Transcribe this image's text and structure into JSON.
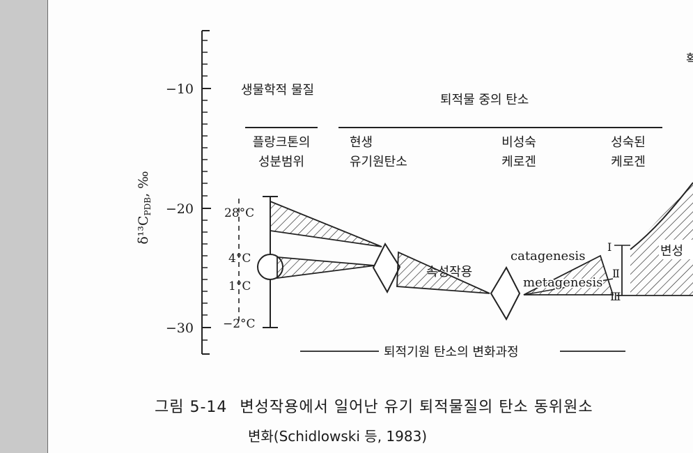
{
  "diagram": {
    "y_axis": {
      "label": "δ¹³C",
      "label_sub": "PDB",
      "label_unit": ", ‰",
      "ticks": [
        "−10",
        "−20",
        "−30"
      ]
    },
    "headers": {
      "biological": "생물학적 물질",
      "sediment_carbon": "퇴적물 중의 탄소",
      "right_cut": "확"
    },
    "columns": {
      "plankton_line1": "플랑크톤의",
      "plankton_line2": "성분범위",
      "recent_line1": "현생",
      "recent_line2": "유기원탄소",
      "immature_line1": "비성숙",
      "immature_line2": "케로겐",
      "mature_line1": "성숙된",
      "mature_line2": "케로겐"
    },
    "temperatures": [
      "28°C",
      "4°C",
      "1°C",
      "−2°C"
    ],
    "process_labels": {
      "diagenesis": "속성작용",
      "catagenesis": "catagenesis",
      "metagenesis": "metagenesis",
      "metamorphism": "변성"
    },
    "roman": [
      "Ⅰ",
      "Ⅱ",
      "Ⅲ"
    ],
    "bottom_line_label": "퇴적기원 탄소의 변화과정"
  },
  "caption": {
    "number": "그림 5-14",
    "line1": "변성작용에서 일어난 유기 퇴적물질의 탄소 동위원소 ",
    "line2": "변화(Schidlowski 등, 1983)"
  }
}
